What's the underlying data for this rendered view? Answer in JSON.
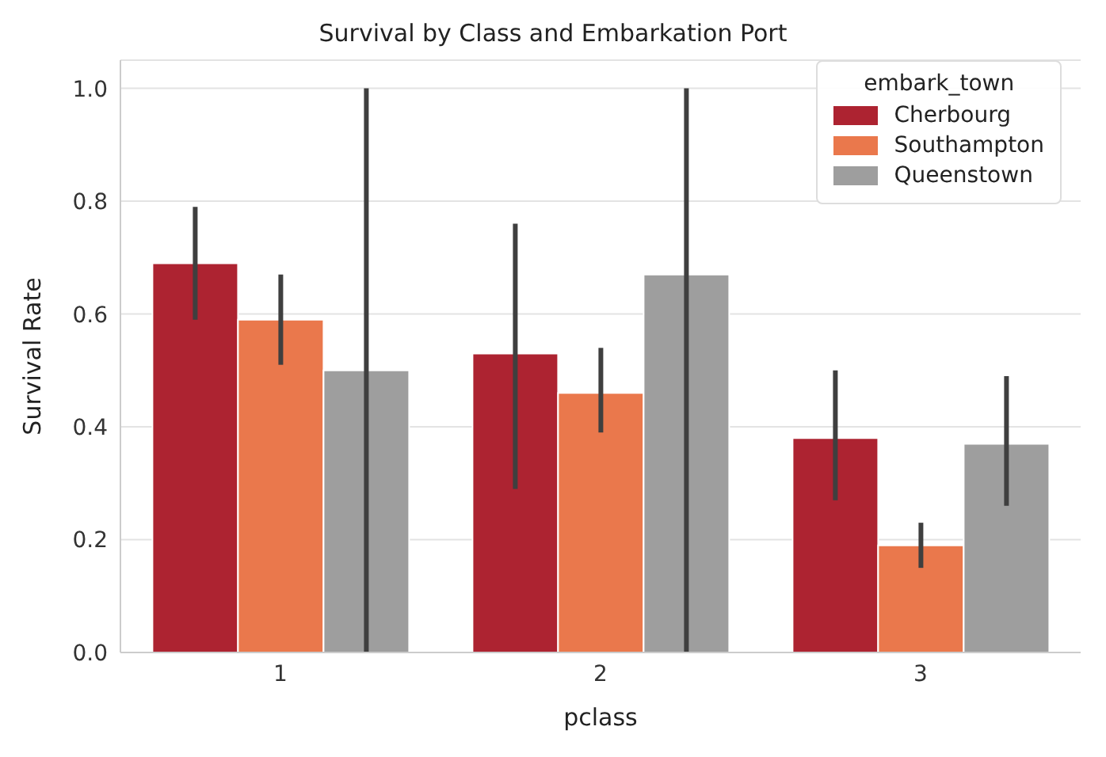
{
  "chart_data": {
    "type": "bar",
    "title": "Survival by Class and Embarkation Port",
    "xlabel": "pclass",
    "ylabel": "Survival Rate",
    "legend_title": "embark_town",
    "categories": [
      "1",
      "2",
      "3"
    ],
    "series": [
      {
        "name": "Cherbourg",
        "color": "#ad2331",
        "values": [
          0.69,
          0.53,
          0.38
        ],
        "errors": [
          [
            0.59,
            0.79
          ],
          [
            0.29,
            0.76
          ],
          [
            0.27,
            0.5
          ]
        ]
      },
      {
        "name": "Southampton",
        "color": "#ea784c",
        "values": [
          0.59,
          0.46,
          0.19
        ],
        "errors": [
          [
            0.51,
            0.67
          ],
          [
            0.39,
            0.54
          ],
          [
            0.15,
            0.23
          ]
        ]
      },
      {
        "name": "Queenstown",
        "color": "#9e9e9e",
        "values": [
          0.5,
          0.67,
          0.37
        ],
        "errors": [
          [
            0.0,
            1.0
          ],
          [
            0.0,
            1.0
          ],
          [
            0.26,
            0.49
          ]
        ]
      }
    ],
    "ylim": [
      0,
      1.05
    ],
    "yticks": [
      {
        "value": 0,
        "label": "0.0"
      },
      0.2,
      0.4,
      0.6,
      0.8,
      {
        "value": 1,
        "label": "1.0"
      }
    ],
    "grid": "y",
    "legend": "top right"
  }
}
